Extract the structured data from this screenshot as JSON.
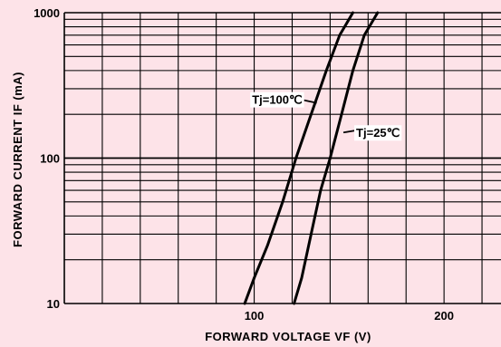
{
  "chart_data": {
    "type": "line",
    "xlabel": "FORWARD  VOLTAGE  VF (V)",
    "ylabel": "FORWARD  CURRENT  IF (mA)",
    "xlim": [
      0,
      230
    ],
    "ylim": [
      10,
      1000
    ],
    "yscale": "log",
    "x_ticks": [
      {
        "value": 100,
        "label": "100"
      },
      {
        "value": 200,
        "label": "200"
      }
    ],
    "y_ticks": [
      {
        "value": 10,
        "label": "10"
      },
      {
        "value": 100,
        "label": "100"
      },
      {
        "value": 1000,
        "label": "1000"
      }
    ],
    "x_grid_step": 20,
    "grid": true,
    "series": [
      {
        "name": "Tj=100℃",
        "x": [
          95,
          100,
          107,
          115,
          122,
          130,
          138,
          145,
          152
        ],
        "y": [
          10,
          15,
          25,
          50,
          100,
          200,
          400,
          700,
          1000
        ]
      },
      {
        "name": "Tj=25℃",
        "x": [
          121,
          125,
          130,
          135,
          140,
          146,
          152,
          158,
          165
        ],
        "y": [
          10,
          15,
          30,
          60,
          100,
          200,
          400,
          700,
          1000
        ]
      }
    ],
    "annotations": [
      {
        "series": 0,
        "text": "Tj=100℃",
        "point": [
          132,
          250
        ]
      },
      {
        "series": 1,
        "text": "Tj=25℃",
        "point": [
          147,
          150
        ]
      }
    ],
    "colors": {
      "background": "#fde3e8",
      "line": "#000000",
      "grid": "#000000"
    }
  }
}
